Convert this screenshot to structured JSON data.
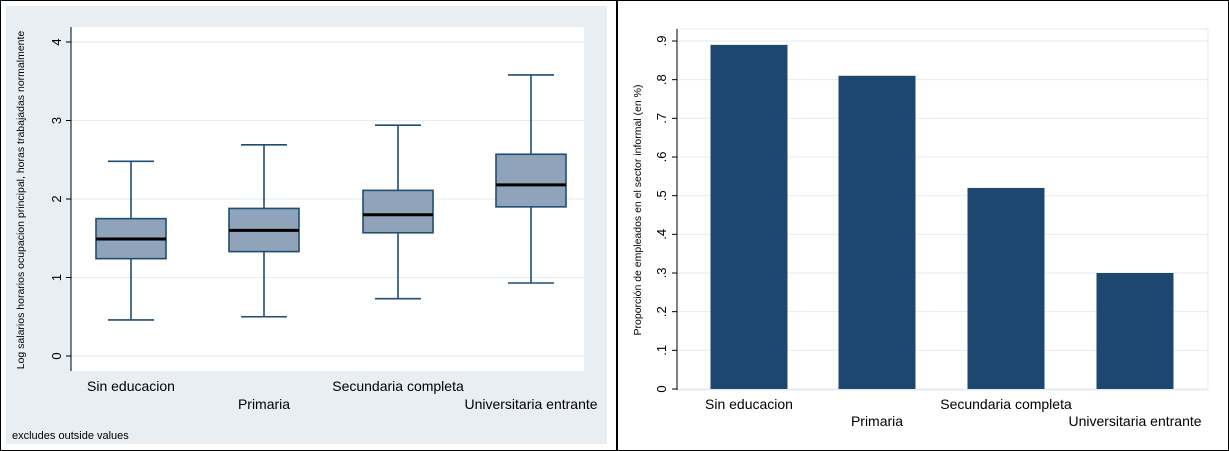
{
  "colors": {
    "outer_bg": "#e9eef3",
    "plot_bg": "#ffffff",
    "grid": "#e6ebf0",
    "box_fill": "#8fa4ba",
    "box_line": "#1f4d72",
    "median": "#000000",
    "bar_fill": "#1e4770"
  },
  "chart_data": [
    {
      "type": "box",
      "ylabel": "Log salarios horarios ocupacion principal, horas trabajadas normalmente",
      "ylim": [
        0,
        4
      ],
      "yticks": [
        0,
        1,
        2,
        3,
        4
      ],
      "ytick_labels": [
        "0",
        "1",
        "2",
        "3",
        "4"
      ],
      "grid": true,
      "categories": [
        "Sin educacion",
        "Primaria",
        "Secundaria completa",
        "Universitaria entrante"
      ],
      "boxes": [
        {
          "whisker_low": 0.46,
          "q1": 1.24,
          "median": 1.49,
          "q3": 1.75,
          "whisker_high": 2.48
        },
        {
          "whisker_low": 0.5,
          "q1": 1.33,
          "median": 1.6,
          "q3": 1.88,
          "whisker_high": 2.69
        },
        {
          "whisker_low": 0.73,
          "q1": 1.57,
          "median": 1.8,
          "q3": 2.11,
          "whisker_high": 2.94
        },
        {
          "whisker_low": 0.93,
          "q1": 1.9,
          "median": 2.18,
          "q3": 2.57,
          "whisker_high": 3.58
        }
      ],
      "note": "excludes outside values"
    },
    {
      "type": "bar",
      "ylabel": "Proporción de empleados en el sector informal (en %)",
      "ylim": [
        0,
        0.9
      ],
      "yticks": [
        0,
        0.1,
        0.2,
        0.3,
        0.4,
        0.5,
        0.6,
        0.7,
        0.8,
        0.9
      ],
      "ytick_labels": [
        "0",
        ".1",
        ".2",
        ".3",
        ".4",
        ".5",
        ".6",
        ".7",
        ".8",
        ".9"
      ],
      "grid": true,
      "categories": [
        "Sin educacion",
        "Primaria",
        "Secundaria completa",
        "Universitaria entrante"
      ],
      "values": [
        0.89,
        0.81,
        0.52,
        0.3
      ]
    }
  ]
}
